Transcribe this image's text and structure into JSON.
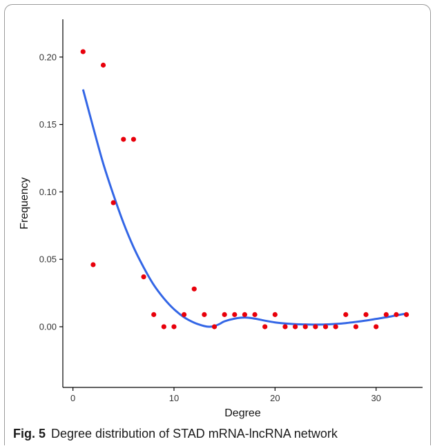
{
  "caption": {
    "label": "Fig. 5",
    "text": "Degree distribution of STAD mRNA-lncRNA network"
  },
  "chart_data": {
    "type": "scatter",
    "title": "",
    "xlabel": "Degree",
    "ylabel": "Frequency",
    "xlim": [
      -1,
      34.6
    ],
    "ylim": [
      -0.045,
      0.228
    ],
    "x_ticks": [
      0,
      10,
      20,
      30
    ],
    "y_ticks": [
      0.0,
      0.05,
      0.1,
      0.15,
      0.2
    ],
    "x_tick_labels": [
      "0",
      "10",
      "20",
      "30"
    ],
    "y_tick_labels": [
      "0.00",
      "0.05",
      "0.10",
      "0.15",
      "0.20"
    ],
    "grid": false,
    "point_color": "#e8000b",
    "line_color": "#3366e6",
    "points": {
      "x": [
        1,
        2,
        3,
        4,
        5,
        6,
        7,
        8,
        9,
        10,
        11,
        12,
        13,
        14,
        15,
        16,
        17,
        18,
        19,
        20,
        21,
        22,
        23,
        24,
        25,
        26,
        27,
        28,
        29,
        30,
        31,
        32,
        33
      ],
      "y": [
        0.204,
        0.046,
        0.194,
        0.092,
        0.139,
        0.139,
        0.037,
        0.009,
        0.0,
        0.0,
        0.009,
        0.028,
        0.009,
        0.0,
        0.009,
        0.009,
        0.009,
        0.009,
        0.0,
        0.009,
        0.0,
        0.0,
        0.0,
        0.0,
        0.0,
        0.0,
        0.009,
        0.0,
        0.009,
        0.0,
        0.009,
        0.009,
        0.009
      ]
    },
    "smooth_line": {
      "x": [
        1,
        2,
        3,
        4,
        5,
        6,
        7,
        8,
        9,
        10,
        11,
        12,
        13,
        13.5,
        14,
        14.5,
        15,
        16,
        17,
        18,
        19,
        20,
        21,
        22,
        23,
        24,
        25,
        26,
        27,
        28,
        29,
        30,
        31,
        32,
        33
      ],
      "y": [
        0.176,
        0.148,
        0.121,
        0.098,
        0.077,
        0.059,
        0.044,
        0.031,
        0.021,
        0.013,
        0.007,
        0.003,
        0.0005,
        0.0,
        0.0005,
        0.002,
        0.004,
        0.006,
        0.0068,
        0.006,
        0.0045,
        0.0032,
        0.0024,
        0.0019,
        0.0017,
        0.0016,
        0.0017,
        0.0021,
        0.0027,
        0.0036,
        0.0046,
        0.0058,
        0.007,
        0.0084,
        0.0098
      ]
    }
  }
}
